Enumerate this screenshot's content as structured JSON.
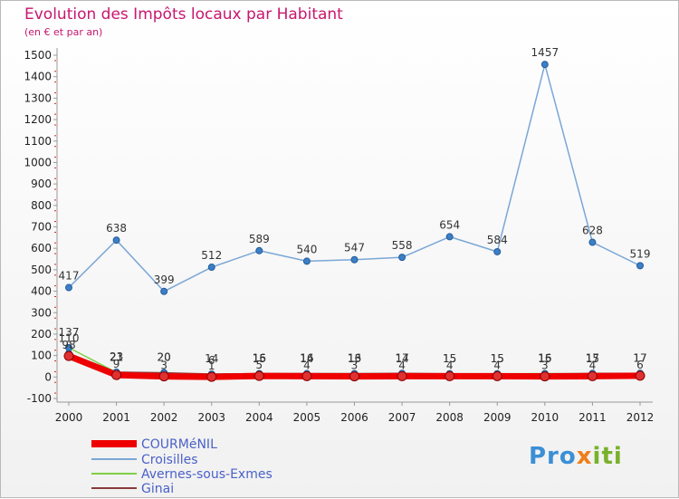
{
  "title": "Evolution des Impôts locaux par Habitant",
  "subtitle": "(en € et par an)",
  "logo": {
    "part1": "Pro",
    "part2": "x",
    "part3": "iti"
  },
  "chart_data": {
    "type": "line",
    "title": "Evolution des Impôts locaux par Habitant",
    "subtitle": "(en € et par an)",
    "xlabel": "",
    "ylabel": "",
    "ylim": [
      -100,
      1500
    ],
    "yticks": [
      -100,
      0,
      100,
      200,
      300,
      400,
      500,
      600,
      700,
      800,
      900,
      1000,
      1100,
      1200,
      1300,
      1400,
      1500
    ],
    "grid": false,
    "legend_position": "bottom-left",
    "x": [
      "2000",
      "2001",
      "2002",
      "2003",
      "2004",
      "2005",
      "2006",
      "2007",
      "2008",
      "2009",
      "2010",
      "2011",
      "2012"
    ],
    "series": [
      {
        "name": "COURMéNIL",
        "color": "#ee0000",
        "width": 7,
        "values": [
          98,
          9,
          3,
          1,
          5,
          4,
          3,
          4,
          4,
          4,
          3,
          4,
          6
        ]
      },
      {
        "name": "Croisilles",
        "color": "#7aa7d6",
        "width": 1.5,
        "values": [
          417,
          638,
          399,
          512,
          589,
          540,
          547,
          558,
          654,
          584,
          1457,
          628,
          519
        ]
      },
      {
        "name": "Avernes-sous-Exmes",
        "color": "#7fcf45",
        "width": 1.5,
        "values": [
          137,
          21,
          20,
          6,
          15,
          14,
          13,
          14,
          15,
          15,
          16,
          15,
          17
        ]
      },
      {
        "name": "Ginai",
        "color": "#8a3b3b",
        "width": 1.5,
        "values": [
          110,
          23,
          20,
          14,
          16,
          16,
          16,
          17,
          15,
          15,
          15,
          17,
          17
        ]
      }
    ]
  }
}
